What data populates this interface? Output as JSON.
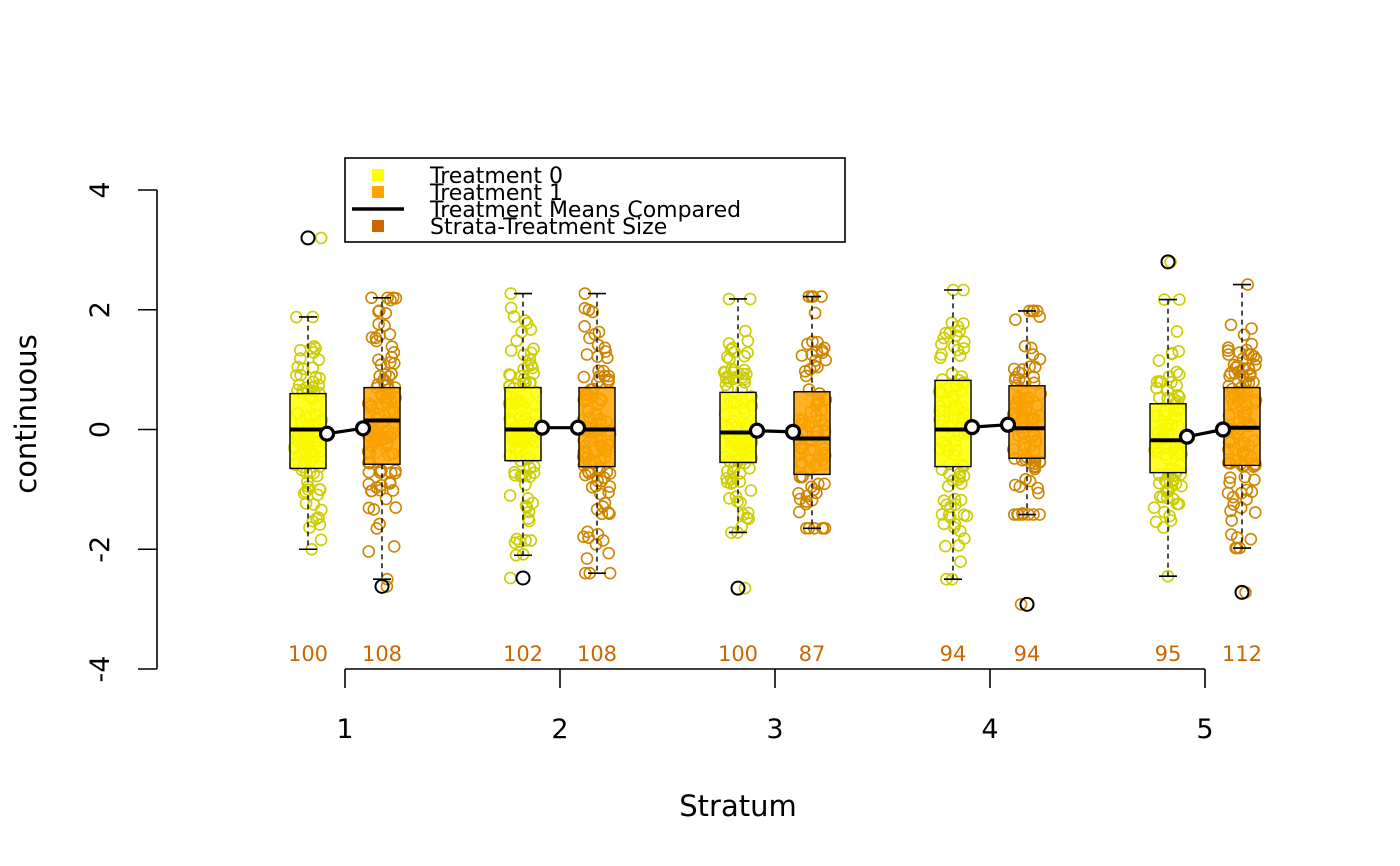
{
  "chart_data": {
    "type": "boxplot",
    "title": "",
    "xlabel": "Stratum",
    "ylabel": "continuous",
    "ylim": [
      -4,
      4
    ],
    "yticks": [
      -4,
      -2,
      0,
      2,
      4
    ],
    "ytick_labels": [
      "-4",
      "-2",
      "0",
      "2",
      "4"
    ],
    "strata": [
      "1",
      "2",
      "3",
      "4",
      "5"
    ],
    "colors": {
      "treatment0_fill": "#ffff00",
      "treatment1_fill": "#ffa500",
      "treatment0_points": "#cdcd00",
      "treatment1_points": "#cd8500",
      "size_text": "#cd6600",
      "means_line": "#000000"
    },
    "legend": {
      "position": "top-left",
      "items": [
        {
          "label": "Treatment 0",
          "kind": "square",
          "color": "#ffff00"
        },
        {
          "label": "Treatment 1",
          "kind": "square",
          "color": "#ffa500"
        },
        {
          "label": "Treatment Means Compared",
          "kind": "line",
          "color": "#000000"
        },
        {
          "label": "Strata-Treatment Size",
          "kind": "square",
          "color": "#cd6600"
        }
      ]
    },
    "groups": [
      {
        "stratum": "1",
        "treatment": "0",
        "n": "100",
        "mean": -0.07,
        "q1": -0.65,
        "median": 0.0,
        "q3": 0.6,
        "whisker_low": -2.0,
        "whisker_high": 1.88,
        "outliers": [
          3.2
        ]
      },
      {
        "stratum": "1",
        "treatment": "1",
        "n": "108",
        "mean": 0.02,
        "q1": -0.58,
        "median": 0.15,
        "q3": 0.7,
        "whisker_low": -2.5,
        "whisker_high": 2.2,
        "outliers": [
          -2.62
        ]
      },
      {
        "stratum": "2",
        "treatment": "0",
        "n": "102",
        "mean": 0.03,
        "q1": -0.52,
        "median": 0.0,
        "q3": 0.7,
        "whisker_low": -2.1,
        "whisker_high": 2.27,
        "outliers": [
          -2.48
        ]
      },
      {
        "stratum": "2",
        "treatment": "1",
        "n": "108",
        "mean": 0.03,
        "q1": -0.62,
        "median": 0.0,
        "q3": 0.7,
        "whisker_low": -2.4,
        "whisker_high": 2.27,
        "outliers": []
      },
      {
        "stratum": "3",
        "treatment": "0",
        "n": "100",
        "mean": -0.02,
        "q1": -0.55,
        "median": -0.05,
        "q3": 0.62,
        "whisker_low": -1.72,
        "whisker_high": 2.18,
        "outliers": [
          -2.65
        ]
      },
      {
        "stratum": "3",
        "treatment": "1",
        "n": "87",
        "mean": -0.04,
        "q1": -0.75,
        "median": -0.15,
        "q3": 0.63,
        "whisker_low": -1.65,
        "whisker_high": 2.22,
        "outliers": []
      },
      {
        "stratum": "4",
        "treatment": "0",
        "n": "94",
        "mean": 0.04,
        "q1": -0.62,
        "median": 0.0,
        "q3": 0.82,
        "whisker_low": -2.5,
        "whisker_high": 2.33,
        "outliers": []
      },
      {
        "stratum": "4",
        "treatment": "1",
        "n": "94",
        "mean": 0.08,
        "q1": -0.48,
        "median": 0.02,
        "q3": 0.73,
        "whisker_low": -1.42,
        "whisker_high": 1.98,
        "outliers": [
          -2.92
        ]
      },
      {
        "stratum": "5",
        "treatment": "0",
        "n": "95",
        "mean": -0.12,
        "q1": -0.72,
        "median": -0.18,
        "q3": 0.43,
        "whisker_low": -2.45,
        "whisker_high": 2.17,
        "outliers": [
          2.8
        ]
      },
      {
        "stratum": "5",
        "treatment": "1",
        "n": "112",
        "mean": 0.0,
        "q1": -0.6,
        "median": 0.03,
        "q3": 0.7,
        "whisker_low": -1.98,
        "whisker_high": 2.42,
        "outliers": [
          -2.72
        ]
      }
    ]
  }
}
